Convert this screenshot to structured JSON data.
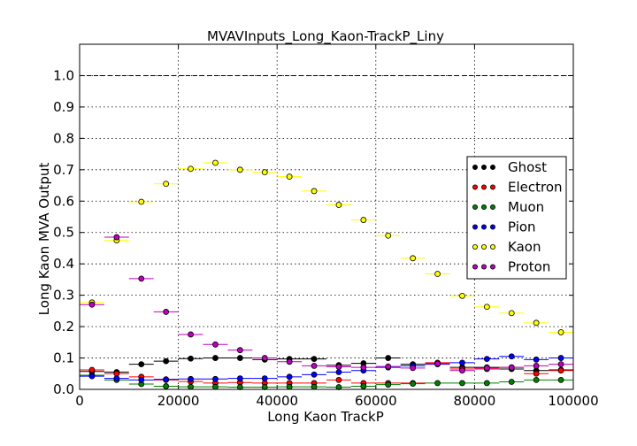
{
  "chart_data": {
    "type": "scatter",
    "title": "MVAVInputs_Long_Kaon-TrackP_Liny",
    "xlabel": "Long Kaon TrackP",
    "ylabel": "Long Kaon MVA Output",
    "xlim": [
      0,
      100000
    ],
    "ylim": [
      0,
      1.1
    ],
    "x_ticks": [
      0,
      20000,
      40000,
      60000,
      80000,
      100000
    ],
    "x_tick_labels": [
      "0",
      "20000",
      "40000",
      "60000",
      "80000",
      "100000"
    ],
    "y_ticks": [
      0.0,
      0.1,
      0.2,
      0.3,
      0.4,
      0.5,
      0.6,
      0.7,
      0.8,
      0.9,
      1.0
    ],
    "y_tick_labels": [
      "0.0",
      "0.1",
      "0.2",
      "0.3",
      "0.4",
      "0.5",
      "0.6",
      "0.7",
      "0.8",
      "0.9",
      "1.0"
    ],
    "grid": true,
    "reference_line_y": 1.0,
    "legend_position": "center-right",
    "bin_width": 5000,
    "x": [
      2500,
      7500,
      12500,
      17500,
      22500,
      27500,
      32500,
      37500,
      42500,
      47500,
      52500,
      57500,
      62500,
      67500,
      72500,
      77500,
      82500,
      87500,
      92500,
      97500
    ],
    "series": [
      {
        "name": "Ghost",
        "color": "#000000",
        "values": [
          0.057,
          0.055,
          0.08,
          0.09,
          0.098,
          0.1,
          0.1,
          0.095,
          0.097,
          0.097,
          0.077,
          0.083,
          0.1,
          0.08,
          0.083,
          0.07,
          0.07,
          0.065,
          0.06,
          0.062
        ]
      },
      {
        "name": "Electron",
        "color": "#ff0000",
        "values": [
          0.062,
          0.05,
          0.04,
          0.03,
          0.025,
          0.02,
          0.022,
          0.02,
          0.02,
          0.02,
          0.03,
          0.02,
          0.02,
          0.02,
          0.085,
          0.065,
          0.065,
          0.07,
          0.05,
          0.06
        ]
      },
      {
        "name": "Muon",
        "color": "#007f00",
        "values": [
          0.045,
          0.03,
          0.017,
          0.01,
          0.008,
          0.008,
          0.007,
          0.007,
          0.008,
          0.008,
          0.007,
          0.01,
          0.015,
          0.018,
          0.02,
          0.02,
          0.02,
          0.024,
          0.03,
          0.03
        ]
      },
      {
        "name": "Pion",
        "color": "#0000ff",
        "values": [
          0.042,
          0.035,
          0.03,
          0.032,
          0.033,
          0.033,
          0.035,
          0.035,
          0.04,
          0.047,
          0.055,
          0.06,
          0.07,
          0.075,
          0.08,
          0.085,
          0.097,
          0.105,
          0.095,
          0.1
        ]
      },
      {
        "name": "Kaon",
        "color": "#ffff00",
        "values": [
          0.277,
          0.475,
          0.598,
          0.655,
          0.703,
          0.722,
          0.7,
          0.692,
          0.678,
          0.632,
          0.588,
          0.54,
          0.49,
          0.418,
          0.368,
          0.298,
          0.263,
          0.243,
          0.212,
          0.182
        ]
      },
      {
        "name": "Proton",
        "color": "#bf00bf",
        "values": [
          0.27,
          0.485,
          0.353,
          0.247,
          0.175,
          0.143,
          0.125,
          0.1,
          0.088,
          0.075,
          0.072,
          0.07,
          0.073,
          0.068,
          0.082,
          0.06,
          0.068,
          0.07,
          0.075,
          0.08
        ]
      }
    ]
  }
}
